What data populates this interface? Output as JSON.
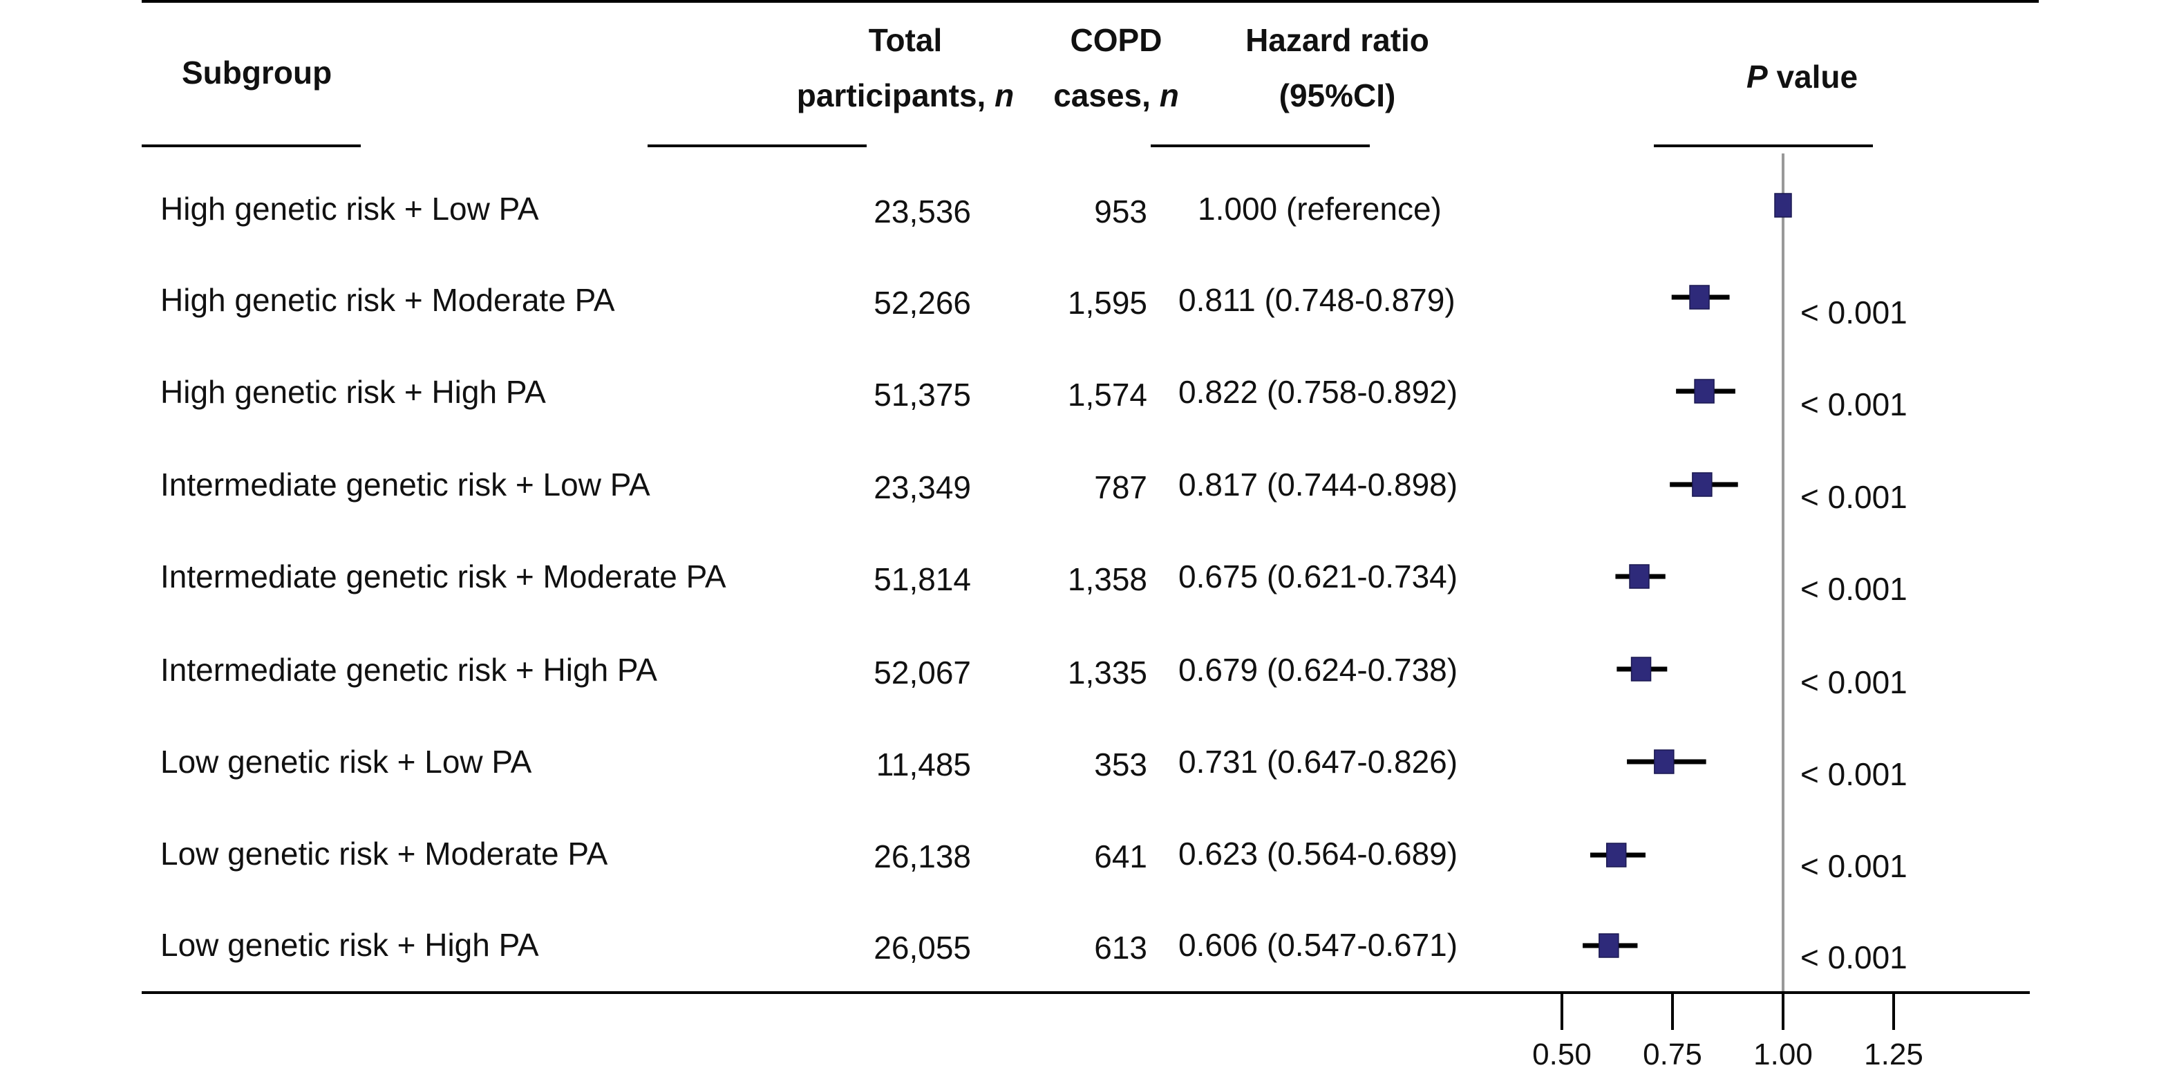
{
  "headers": {
    "subgroup": "Subgroup",
    "total_line1": "Total",
    "total_line2": "participants, ",
    "total_italic": "n",
    "cases_line1": "COPD",
    "cases_line2": "cases, ",
    "cases_italic": "n",
    "hr_line1": "Hazard ratio",
    "hr_line2": "(95%CI)",
    "p_italic": "P",
    "p_rest": " value"
  },
  "rows": [
    {
      "subgroup": "High genetic risk + Low PA",
      "total": "23,536",
      "cases": "953",
      "hr_text": "1.000 (reference)",
      "p": ""
    },
    {
      "subgroup": "High genetic risk + Moderate PA",
      "total": "52,266",
      "cases": "1,595",
      "hr_text": "0.811 (0.748-0.879)",
      "p": "< 0.001"
    },
    {
      "subgroup": "High genetic risk + High PA",
      "total": "51,375",
      "cases": "1,574",
      "hr_text": "0.822 (0.758-0.892)",
      "p": "< 0.001"
    },
    {
      "subgroup": "Intermediate genetic risk + Low PA",
      "total": "23,349",
      "cases": "787",
      "hr_text": "0.817 (0.744-0.898)",
      "p": "< 0.001"
    },
    {
      "subgroup": "Intermediate genetic risk + Moderate PA",
      "total": "51,814",
      "cases": "1,358",
      "hr_text": "0.675 (0.621-0.734)",
      "p": "< 0.001"
    },
    {
      "subgroup": "Intermediate genetic risk + High PA",
      "total": "52,067",
      "cases": "1,335",
      "hr_text": "0.679 (0.624-0.738)",
      "p": "< 0.001"
    },
    {
      "subgroup": "Low genetic risk + Low PA",
      "total": "11,485",
      "cases": "353",
      "hr_text": "0.731 (0.647-0.826)",
      "p": "< 0.001"
    },
    {
      "subgroup": "Low genetic risk + Moderate PA",
      "total": "26,138",
      "cases": "641",
      "hr_text": "0.623 (0.564-0.689)",
      "p": "< 0.001"
    },
    {
      "subgroup": "Low genetic risk + High PA",
      "total": "26,055",
      "cases": "613",
      "hr_text": "0.606 (0.547-0.671)",
      "p": "< 0.001"
    }
  ],
  "chart_data": {
    "type": "scatter",
    "subtype": "forest",
    "title": "",
    "xlabel": "",
    "ylabel": "",
    "reference_line": 1.0,
    "xlim": [
      0.5,
      1.25
    ],
    "x_ticks": [
      0.5,
      0.75,
      1.0,
      1.25
    ],
    "x_tick_labels": [
      "0.50",
      "0.75",
      "1.00",
      "1.25"
    ],
    "categories": [
      "High genetic risk + Low PA",
      "High genetic risk + Moderate PA",
      "High genetic risk + High PA",
      "Intermediate genetic risk + Low PA",
      "Intermediate genetic risk + Moderate PA",
      "Intermediate genetic risk + High PA",
      "Low genetic risk + Low PA",
      "Low genetic risk + Moderate PA",
      "Low genetic risk + High PA"
    ],
    "hr": [
      1.0,
      0.811,
      0.822,
      0.817,
      0.675,
      0.679,
      0.731,
      0.623,
      0.606
    ],
    "ci_low": [
      null,
      0.748,
      0.758,
      0.744,
      0.621,
      0.624,
      0.647,
      0.564,
      0.547
    ],
    "ci_high": [
      null,
      0.879,
      0.892,
      0.898,
      0.734,
      0.738,
      0.826,
      0.689,
      0.671
    ],
    "grid": false,
    "colors": {
      "marker": "#2e2a7a",
      "ci_line": "#000000",
      "ref_line": "#999999"
    }
  }
}
